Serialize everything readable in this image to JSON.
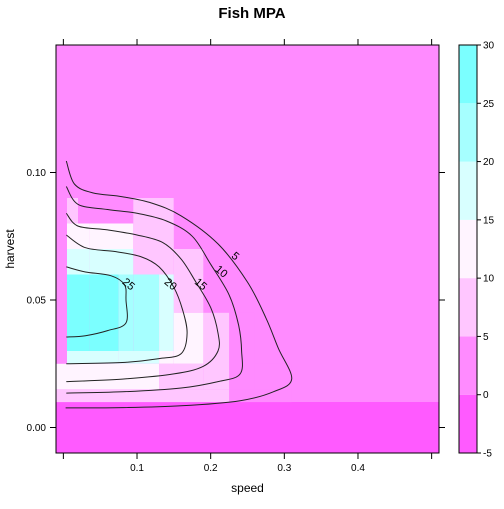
{
  "chart_data": {
    "type": "heatmap",
    "title": "Fish MPA",
    "xlabel": "speed",
    "ylabel": "harvest",
    "xlim": [
      -0.01,
      0.51
    ],
    "ylim": [
      -0.01,
      0.15
    ],
    "x_ticks": [
      0.1,
      0.2,
      0.3,
      0.4
    ],
    "x_tick_labels": [
      "0.1",
      "0.2",
      "0.3",
      "0.4"
    ],
    "y_ticks": [
      0.0,
      0.05,
      0.1
    ],
    "y_tick_labels": [
      "0.00",
      "0.05",
      "0.10"
    ],
    "colorbar": {
      "breaks": [
        -5,
        0,
        5,
        10,
        15,
        20,
        25,
        30
      ],
      "tick_labels": [
        "-5",
        "0",
        "5",
        "10",
        "15",
        "20",
        "25",
        "30"
      ],
      "colors": [
        "#FF5AFF",
        "#FF8BFF",
        "#FFC6FF",
        "#FFF4FF",
        "#D8FFFF",
        "#A6FFFF",
        "#7BFFFF"
      ]
    },
    "colors": {
      "background": "#FF8BFF",
      "bottom_band": "#FF5AFF",
      "contour_line": "#222222"
    },
    "cells": [
      {
        "x0": -0.01,
        "x1": 0.51,
        "y0": -0.01,
        "y1": 0.01,
        "v": -2
      },
      {
        "x0": 0.225,
        "x1": 0.31,
        "y0": 0.01,
        "y1": 0.015,
        "v": 3
      },
      {
        "x0": -0.01,
        "x1": 0.225,
        "y0": 0.01,
        "y1": 0.015,
        "v": 8
      },
      {
        "x0": -0.01,
        "x1": 0.005,
        "y0": 0.015,
        "y1": 0.11,
        "v": 3
      },
      {
        "x0": 0.005,
        "x1": 0.02,
        "y0": 0.09,
        "y1": 0.11,
        "v": 3
      },
      {
        "x0": 0.005,
        "x1": 0.02,
        "y0": 0.08,
        "y1": 0.09,
        "v": 8
      },
      {
        "x0": 0.02,
        "x1": 0.095,
        "y0": 0.08,
        "y1": 0.09,
        "v": 3
      },
      {
        "x0": 0.095,
        "x1": 0.15,
        "y0": 0.08,
        "y1": 0.09,
        "v": 8
      },
      {
        "x0": 0.15,
        "x1": 0.19,
        "y0": 0.045,
        "y1": 0.09,
        "v": 3
      },
      {
        "x0": 0.19,
        "x1": 0.225,
        "y0": 0.045,
        "y1": 0.07,
        "v": 3
      },
      {
        "x0": 0.225,
        "x1": 0.26,
        "y0": 0.015,
        "y1": 0.045,
        "v": 3
      },
      {
        "x0": 0.26,
        "x1": 0.31,
        "y0": 0.015,
        "y1": 0.025,
        "v": 3
      },
      {
        "x0": 0.005,
        "x1": 0.035,
        "y0": 0.07,
        "y1": 0.08,
        "v": 12
      },
      {
        "x0": 0.035,
        "x1": 0.095,
        "y0": 0.07,
        "y1": 0.08,
        "v": 13
      },
      {
        "x0": 0.095,
        "x1": 0.15,
        "y0": 0.07,
        "y1": 0.08,
        "v": 8
      },
      {
        "x0": 0.095,
        "x1": 0.15,
        "y0": 0.06,
        "y1": 0.07,
        "v": 8
      },
      {
        "x0": 0.15,
        "x1": 0.19,
        "y0": 0.045,
        "y1": 0.07,
        "v": 8
      },
      {
        "x0": 0.19,
        "x1": 0.225,
        "y0": 0.015,
        "y1": 0.045,
        "v": 8
      },
      {
        "x0": 0.005,
        "x1": 0.035,
        "y0": 0.06,
        "y1": 0.07,
        "v": 17
      },
      {
        "x0": 0.035,
        "x1": 0.095,
        "y0": 0.06,
        "y1": 0.07,
        "v": 17
      },
      {
        "x0": 0.005,
        "x1": 0.035,
        "y0": 0.025,
        "y1": 0.06,
        "v": 26
      },
      {
        "x0": 0.035,
        "x1": 0.075,
        "y0": 0.03,
        "y1": 0.06,
        "v": 27
      },
      {
        "x0": 0.075,
        "x1": 0.095,
        "y0": 0.03,
        "y1": 0.06,
        "v": 22
      },
      {
        "x0": 0.095,
        "x1": 0.13,
        "y0": 0.03,
        "y1": 0.06,
        "v": 22
      },
      {
        "x0": 0.13,
        "x1": 0.15,
        "y0": 0.03,
        "y1": 0.06,
        "v": 17
      },
      {
        "x0": 0.15,
        "x1": 0.19,
        "y0": 0.025,
        "y1": 0.045,
        "v": 12
      },
      {
        "x0": 0.005,
        "x1": 0.075,
        "y0": 0.025,
        "y1": 0.03,
        "v": 17
      },
      {
        "x0": 0.075,
        "x1": 0.13,
        "y0": 0.025,
        "y1": 0.03,
        "v": 17
      },
      {
        "x0": 0.13,
        "x1": 0.15,
        "y0": 0.025,
        "y1": 0.03,
        "v": 12
      },
      {
        "x0": -0.01,
        "x1": 0.13,
        "y0": 0.015,
        "y1": 0.025,
        "v": 12
      },
      {
        "x0": 0.13,
        "x1": 0.19,
        "y0": 0.015,
        "y1": 0.025,
        "v": 8
      }
    ],
    "contours": [
      {
        "level": 5,
        "label": "5",
        "label_at": [
          0.233,
          0.067
        ],
        "points": [
          [
            0.004,
            0.1045
          ],
          [
            0.015,
            0.0955
          ],
          [
            0.04,
            0.092
          ],
          [
            0.08,
            0.0905
          ],
          [
            0.12,
            0.088
          ],
          [
            0.16,
            0.083
          ],
          [
            0.21,
            0.072
          ],
          [
            0.25,
            0.057
          ],
          [
            0.275,
            0.043
          ],
          [
            0.292,
            0.031
          ],
          [
            0.31,
            0.019
          ],
          [
            0.285,
            0.014
          ],
          [
            0.24,
            0.0105
          ],
          [
            0.16,
            0.0085
          ],
          [
            0.08,
            0.0078
          ],
          [
            0.003,
            0.0077
          ]
        ]
      },
      {
        "level": 10,
        "label": "10",
        "label_at": [
          0.214,
          0.061
        ],
        "points": [
          [
            0.004,
            0.0945
          ],
          [
            0.02,
            0.0875
          ],
          [
            0.06,
            0.0855
          ],
          [
            0.1,
            0.084
          ],
          [
            0.14,
            0.081
          ],
          [
            0.175,
            0.075
          ],
          [
            0.2,
            0.064
          ],
          [
            0.225,
            0.052
          ],
          [
            0.238,
            0.04
          ],
          [
            0.242,
            0.03
          ],
          [
            0.24,
            0.021
          ],
          [
            0.21,
            0.018
          ],
          [
            0.16,
            0.0155
          ],
          [
            0.08,
            0.014
          ],
          [
            0.004,
            0.0135
          ]
        ]
      },
      {
        "level": 15,
        "label": "15",
        "label_at": [
          0.186,
          0.056
        ],
        "points": [
          [
            0.004,
            0.084
          ],
          [
            0.02,
            0.079
          ],
          [
            0.06,
            0.0775
          ],
          [
            0.1,
            0.0755
          ],
          [
            0.135,
            0.0725
          ],
          [
            0.16,
            0.066
          ],
          [
            0.18,
            0.057
          ],
          [
            0.2,
            0.047
          ],
          [
            0.21,
            0.037
          ],
          [
            0.21,
            0.03
          ],
          [
            0.19,
            0.024
          ],
          [
            0.15,
            0.021
          ],
          [
            0.08,
            0.019
          ],
          [
            0.004,
            0.018
          ]
        ]
      },
      {
        "level": 20,
        "label": "20",
        "label_at": [
          0.145,
          0.056
        ],
        "points": [
          [
            0.004,
            0.0755
          ],
          [
            0.03,
            0.0705
          ],
          [
            0.07,
            0.069
          ],
          [
            0.105,
            0.067
          ],
          [
            0.13,
            0.063
          ],
          [
            0.15,
            0.055
          ],
          [
            0.162,
            0.046
          ],
          [
            0.168,
            0.037
          ],
          [
            0.16,
            0.029
          ],
          [
            0.13,
            0.027
          ],
          [
            0.08,
            0.0255
          ],
          [
            0.004,
            0.025
          ]
        ]
      },
      {
        "level": 25,
        "label": "25",
        "label_at": [
          0.088,
          0.056
        ],
        "points": [
          [
            0.004,
            0.063
          ],
          [
            0.03,
            0.061
          ],
          [
            0.065,
            0.0595
          ],
          [
            0.083,
            0.056
          ],
          [
            0.085,
            0.05
          ],
          [
            0.085,
            0.041
          ],
          [
            0.06,
            0.038
          ],
          [
            0.03,
            0.036
          ],
          [
            0.004,
            0.0355
          ]
        ]
      }
    ]
  }
}
